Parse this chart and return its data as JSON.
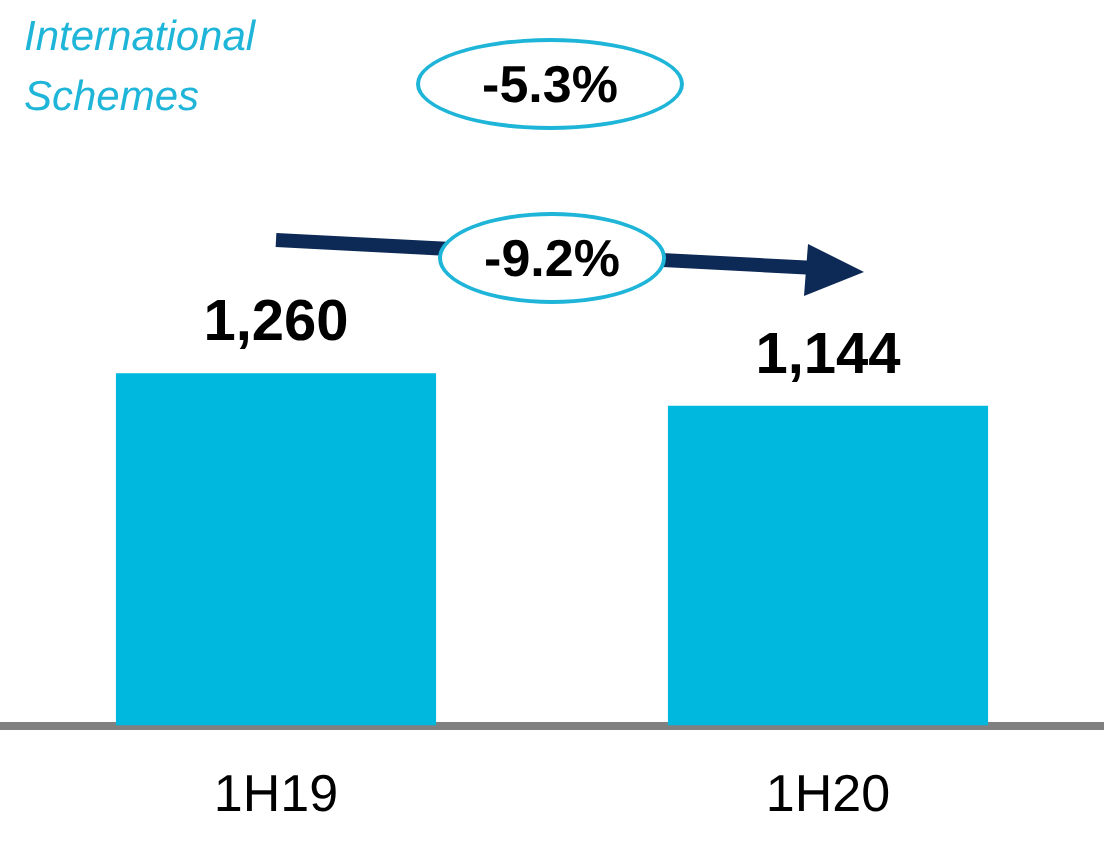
{
  "chart_data": {
    "type": "bar",
    "title": "International Schemes",
    "categories": [
      "1H19",
      "1H20"
    ],
    "values": [
      1260,
      1144
    ],
    "color": "#00b7de",
    "value_labels": [
      "1,260",
      "1,144"
    ],
    "annotations": [
      "-5.3%",
      "-9.2%"
    ],
    "grid": false,
    "legend": false
  }
}
